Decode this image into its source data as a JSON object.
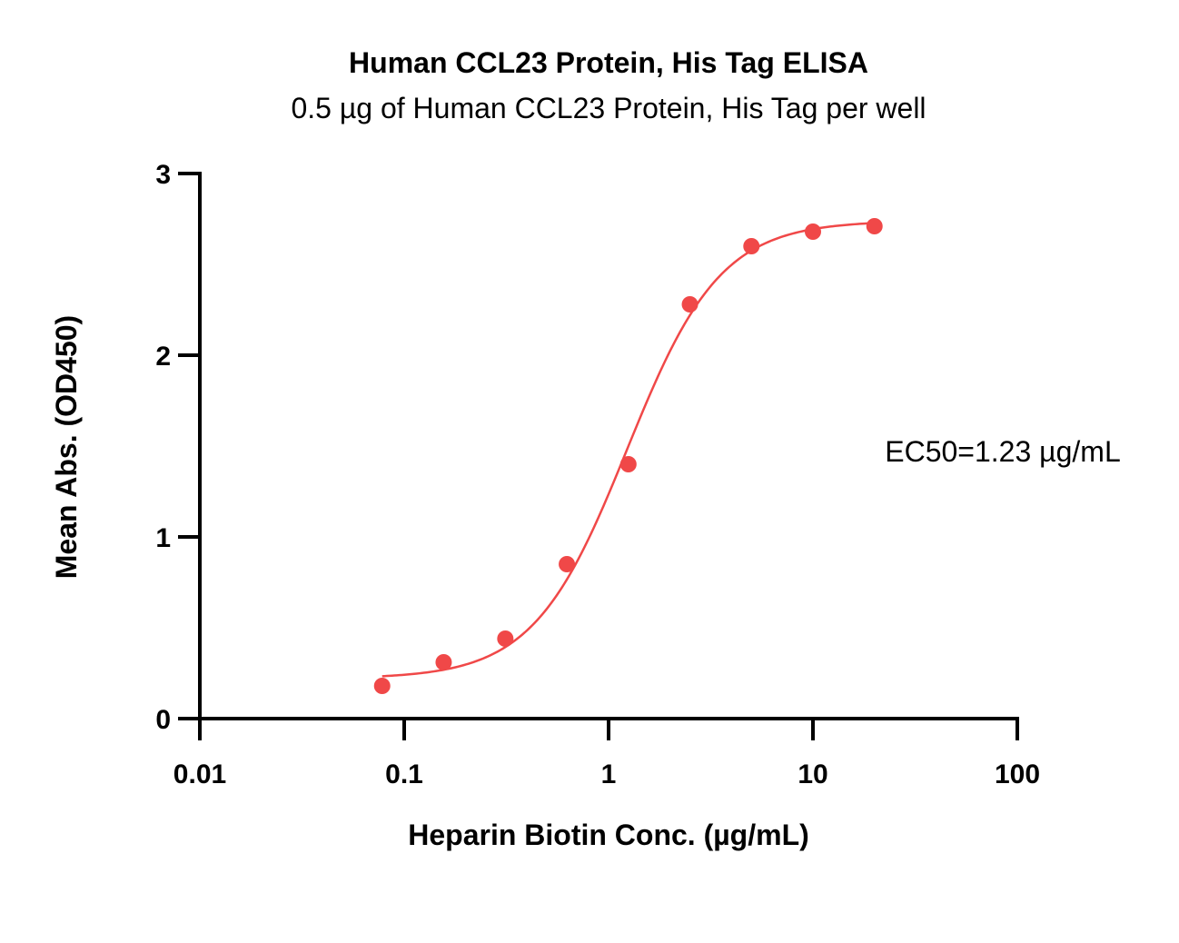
{
  "chart_data": {
    "type": "scatter",
    "title": "Human CCL23 Protein, His Tag ELISA",
    "subtitle": "0.5 µg of Human CCL23 Protein, His Tag per well",
    "xlabel": "Heparin Biotin Conc. (µg/mL)",
    "ylabel": "Mean Abs. (OD450)",
    "x_scale": "log",
    "xlim": [
      0.01,
      100
    ],
    "ylim": [
      0,
      3
    ],
    "x_ticks": [
      "0.01",
      "0.1",
      "1",
      "10",
      "100"
    ],
    "y_ticks": [
      "0",
      "1",
      "2",
      "3"
    ],
    "x_tick_values": [
      0.01,
      0.1,
      1,
      10,
      100
    ],
    "y_tick_values": [
      0,
      1,
      2,
      3
    ],
    "grid": false,
    "series": [
      {
        "color": "#f04848",
        "x": [
          0.078,
          0.156,
          0.3125,
          0.625,
          1.25,
          2.5,
          5,
          10,
          20
        ],
        "y": [
          0.18,
          0.31,
          0.44,
          0.85,
          1.4,
          2.28,
          2.6,
          2.68,
          2.71
        ]
      }
    ],
    "fit": {
      "model": "4PL",
      "bottom": 0.22,
      "top": 2.74,
      "ec50": 1.23,
      "hill": 1.9,
      "x_range": [
        0.078,
        20
      ]
    },
    "annotations": [
      "EC50=1.23 µg/mL"
    ]
  }
}
